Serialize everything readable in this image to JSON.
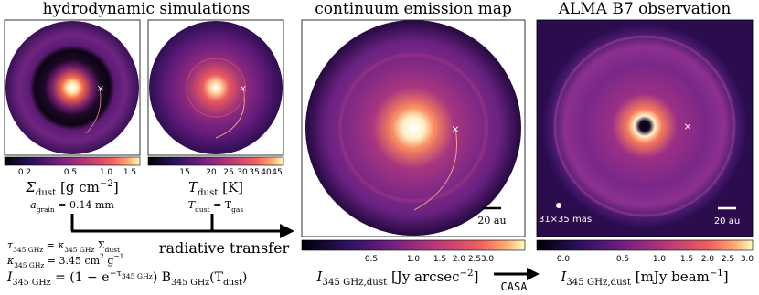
{
  "panels": [
    {
      "title": "hydrodynamic simulations",
      "colorbars": [
        {
          "ticks": [
            "0.2",
            "0.5",
            "1.0",
            "1.5"
          ],
          "label": [
            "Σ",
            "dust",
            " [g cm",
            "−2",
            "]"
          ]
        },
        {
          "ticks": [
            "15",
            "20",
            "25",
            "30",
            "35",
            "40",
            "45"
          ],
          "label": [
            "T",
            "dust",
            " [K]"
          ]
        }
      ],
      "notes": [
        [
          "a",
          "grain",
          " = 0.14 mm"
        ],
        [
          "T",
          "dust",
          " = T",
          "gas"
        ]
      ]
    },
    {
      "title": "continuum emission map",
      "scale_bar": "20 au",
      "colorbar": {
        "ticks": [
          "0.5",
          "1.0",
          "1.5",
          "2.0",
          "2.5",
          "3.0"
        ],
        "label": [
          "I",
          "345 GHz,dust",
          " [Jy arcsec",
          "−2",
          "]"
        ]
      }
    },
    {
      "title": "ALMA B7 observation",
      "beam": "31×35 mas",
      "scale_bar": "20 au",
      "colorbar": {
        "ticks": [
          "0.0",
          "0.5",
          "1.0",
          "1.5",
          "2.0",
          "2.5",
          "3.0"
        ],
        "label": [
          "I",
          "345 GHz,dust",
          " [mJy beam",
          "−1",
          "]"
        ]
      }
    }
  ],
  "process": "radiative transfer",
  "tool": "CASA",
  "equations": [
    [
      "τ",
      "345 GHz",
      " = κ",
      "345 GHz",
      " Σ",
      "dust"
    ],
    [
      "κ",
      "345 GHz",
      " = 3.45 cm",
      "2",
      " g",
      "−1"
    ],
    [
      "I",
      "345 GHz",
      " = (1 − e",
      "−τ",
      "345 GHz",
      ") B",
      "345 GHz",
      "(T",
      "dust",
      ")"
    ]
  ]
}
